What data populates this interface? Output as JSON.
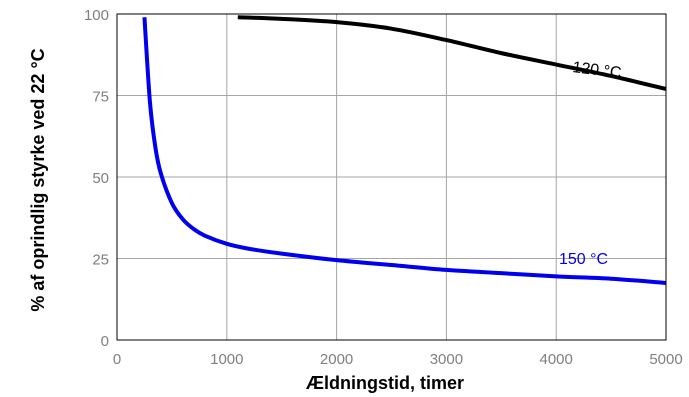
{
  "chart_data": {
    "type": "line",
    "title": "",
    "xlabel": "Ældningstid, timer",
    "ylabel": "% af oprindlig styrke ved 22 °C",
    "xlim": [
      0,
      5000
    ],
    "ylim": [
      0,
      100
    ],
    "x_ticks": [
      "0",
      "1000",
      "2000",
      "3000",
      "4000",
      "5000"
    ],
    "y_ticks": [
      "0",
      "25",
      "50",
      "75",
      "100"
    ],
    "grid": true,
    "legend": "none",
    "series": [
      {
        "name": "120 °C",
        "color": "#000000",
        "x": [
          1100,
          1500,
          2000,
          2500,
          3000,
          3500,
          4000,
          4500,
          5000
        ],
        "y": [
          99,
          98.5,
          97.5,
          95.5,
          92,
          88,
          84.5,
          81,
          77
        ]
      },
      {
        "name": "150 °C",
        "color": "#0000ee",
        "x": [
          250,
          300,
          350,
          400,
          500,
          600,
          700,
          800,
          1000,
          1200,
          1500,
          2000,
          2500,
          3000,
          3500,
          4000,
          4500,
          5000
        ],
        "y": [
          99,
          73,
          59,
          51,
          42,
          37,
          34,
          32,
          29.5,
          28,
          26.5,
          24.5,
          23,
          21.5,
          20.5,
          19.5,
          18.8,
          17.5
        ]
      }
    ]
  }
}
